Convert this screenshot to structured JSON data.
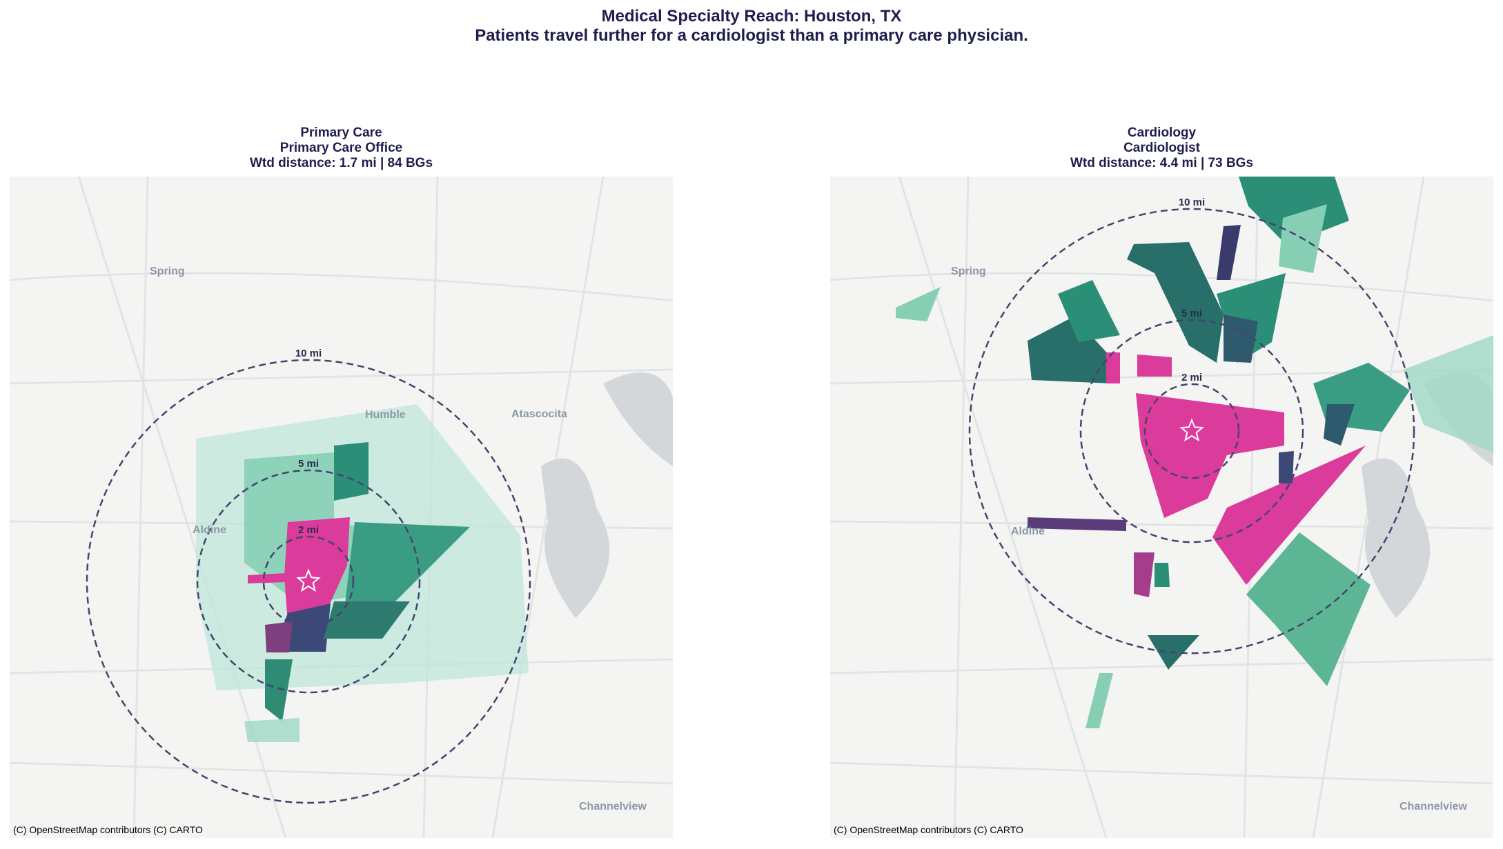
{
  "header": {
    "title": "Medical Specialty Reach: Houston, TX",
    "subtitle": "Patients travel further for a cardiologist than a primary care physician."
  },
  "panels": [
    {
      "title_lines": [
        "Primary Care",
        "Primary Care Office",
        "Wtd distance: 1.7 mi | 84 BGs"
      ],
      "rings": [
        "2 mi",
        "5 mi",
        "10 mi"
      ],
      "places": [
        "Spring",
        "Humble",
        "Atascocita",
        "Aldine",
        "Channelview"
      ],
      "attribution": "(C) OpenStreetMap contributors (C) CARTO"
    },
    {
      "title_lines": [
        "Cardiology",
        "Cardiologist",
        "Wtd distance: 4.4 mi | 73 BGs"
      ],
      "rings": [
        "2 mi",
        "5 mi",
        "10 mi"
      ],
      "places": [
        "Spring",
        "Aldine",
        "Channelview"
      ],
      "attribution": "(C) OpenStreetMap contributors (C) CARTO"
    }
  ]
}
